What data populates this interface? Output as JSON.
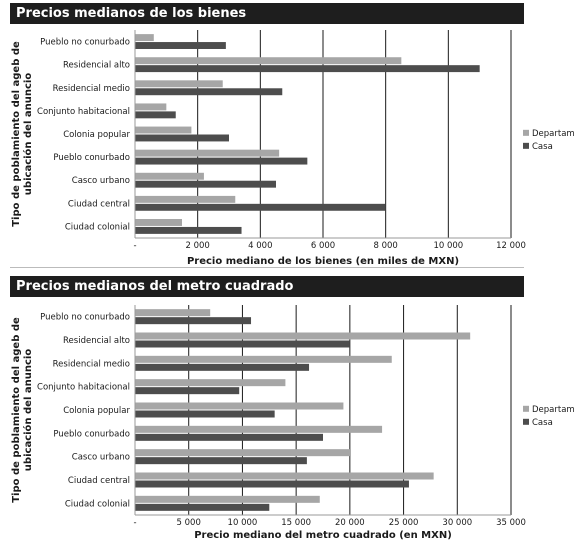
{
  "colors": {
    "departamento": "#a6a6a6",
    "casa": "#4d4d4d",
    "grid": "#1a1a1a",
    "title_bg": "#1e1e1e"
  },
  "chart_data": [
    {
      "type": "bar",
      "orientation": "horizontal",
      "title": "Precios medianos de los bienes",
      "ylabel_lines": [
        "Tipo de poblamiento del ageb de",
        "ubicación del anuncio"
      ],
      "xlabel": "Precio mediano de los bienes (en miles de MXN)",
      "xlim": [
        0,
        12000
      ],
      "xticks": [
        0,
        2000,
        4000,
        6000,
        8000,
        10000,
        12000
      ],
      "xtick_labels": [
        "-",
        "2 000",
        "4 000",
        "6 000",
        "8 000",
        "10 000",
        "12 000"
      ],
      "grid": true,
      "legend_position": "right",
      "categories": [
        "Pueblo no conurbado",
        "Residencial alto",
        "Residencial medio",
        "Conjunto habitacional",
        "Colonia popular",
        "Pueblo conurbado",
        "Casco urbano",
        "Ciudad central",
        "Ciudad colonial"
      ],
      "series": [
        {
          "name": "Departamento",
          "values": [
            600,
            8500,
            2800,
            1000,
            1800,
            4600,
            2200,
            3200,
            1500
          ]
        },
        {
          "name": "Casa",
          "values": [
            2900,
            11000,
            4700,
            1300,
            3000,
            5500,
            4500,
            8000,
            3400
          ]
        }
      ]
    },
    {
      "type": "bar",
      "orientation": "horizontal",
      "title": "Precios medianos del metro cuadrado",
      "ylabel_lines": [
        "Tipo de poblamiento del ageb de",
        "ubicación del anuncio"
      ],
      "xlabel": "Precio mediano del metro cuadrado (en MXN)",
      "xlim": [
        0,
        35000
      ],
      "xticks": [
        0,
        5000,
        10000,
        15000,
        20000,
        25000,
        30000,
        35000
      ],
      "xtick_labels": [
        "-",
        "5 000",
        "10 000",
        "15 000",
        "20 000",
        "25 000",
        "30 000",
        "35 000"
      ],
      "grid": true,
      "legend_position": "right",
      "categories": [
        "Pueblo no conurbado",
        "Residencial alto",
        "Residencial medio",
        "Conjunto habitacional",
        "Colonia popular",
        "Pueblo conurbado",
        "Casco urbano",
        "Ciudad central",
        "Ciudad colonial"
      ],
      "series": [
        {
          "name": "Departamento",
          "values": [
            7000,
            31200,
            23900,
            14000,
            19400,
            23000,
            20100,
            27800,
            17200
          ]
        },
        {
          "name": "Casa",
          "values": [
            10800,
            20000,
            16200,
            9700,
            13000,
            17500,
            16000,
            25500,
            12500
          ]
        }
      ]
    }
  ]
}
